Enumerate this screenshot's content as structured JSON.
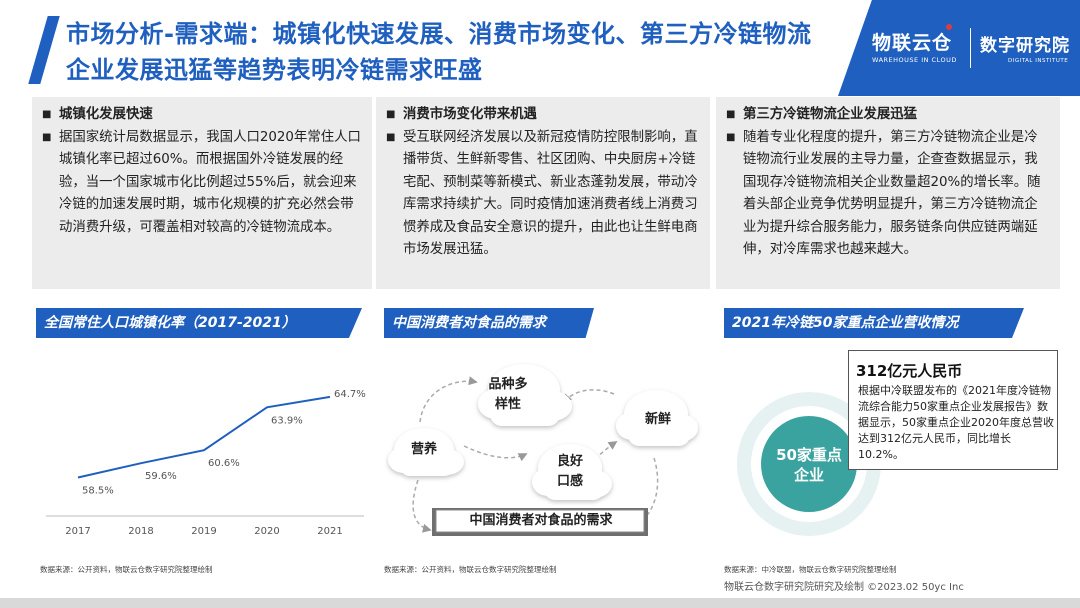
{
  "title": "市场分析-需求端：城镇化快速发展、消费市场变化、第三方冷链物流企业发展迅猛等趋势表明冷链需求旺盛",
  "logo": {
    "main": "物联云仓",
    "main_sub": "WAREHOUSE IN CLOUD",
    "side": "数字研究院",
    "side_sub": "DIGITAL INSTITUTE"
  },
  "panels": [
    {
      "heading": "城镇化发展快速",
      "body": "据国家统计局数据显示，我国人口2020年常住人口城镇化率已超过60%。而根据国外冷链发展的经验，当一个国家城市化比例超过55%后，就会迎来冷链的加速发展时期，城市化规模的扩充必然会带动消费升级，可覆盖相对较高的冷链物流成本。"
    },
    {
      "heading": "消费市场变化带来机遇",
      "body": "受互联网经济发展以及新冠疫情防控限制影响，直播带货、生鲜新零售、社区团购、中央厨房+冷链宅配、预制菜等新模式、新业态蓬勃发展，带动冷库需求持续扩大。同时疫情加速消费者线上消费习惯养成及食品安全意识的提升，由此也让生鲜电商市场发展迅猛。"
    },
    {
      "heading": "第三方冷链物流企业发展迅猛",
      "body": "随着专业化程度的提升，第三方冷链物流企业是冷链物流行业发展的主导力量，企查查数据显示，我国现存冷链物流相关企业数量超20%的增长率。随着头部企业竞争优势明显提升，第三方冷链物流企业为提升综合服务能力，服务链条向供应链两端延伸，对冷库需求也越来越大。"
    }
  ],
  "sections": {
    "urbanization": "全国常住人口城镇化率（2017-2021）",
    "food_demand": "中国消费者对食品的需求",
    "revenue": "2021年冷链50家重点企业营收情况"
  },
  "chart_data": {
    "type": "line",
    "title": "全国常住人口城镇化率（2017-2021）",
    "categories": [
      "2017",
      "2018",
      "2019",
      "2020",
      "2021"
    ],
    "values": [
      58.5,
      59.6,
      60.6,
      63.9,
      64.7
    ],
    "value_labels": [
      "58.5%",
      "59.6%",
      "60.6%",
      "63.9%",
      "64.7%"
    ],
    "ylim": [
      56,
      66
    ],
    "grid": false
  },
  "food": {
    "clouds": [
      "营养",
      "品种多样性",
      "新鲜",
      "良好口感"
    ],
    "center_label": "中国消费者对食品的需求"
  },
  "revenue": {
    "headline": "312亿元人民币",
    "text": "根据中冷联盟发布的《2021年度冷链物流综合能力50家重点企业发展报告》数据显示，50家重点企业2020年度总营收达到312亿元人民币，同比增长10.2%。",
    "ring_label": "50家重点企业"
  },
  "sources": [
    "数据来源：公开资料，物联云仓数字研究院整理绘制",
    "数据来源：公开资料，物联云仓数字研究院整理绘制",
    "数据来源：中冷联盟，物联云仓数字研究院整理绘制"
  ],
  "footer": "物联云仓数字研究院研究及绘制    ©2023.02  50yc Inc",
  "colors": {
    "accent": "#1f5fbf",
    "ring": "#3aa3a0",
    "panel_bg": "#ececec"
  }
}
